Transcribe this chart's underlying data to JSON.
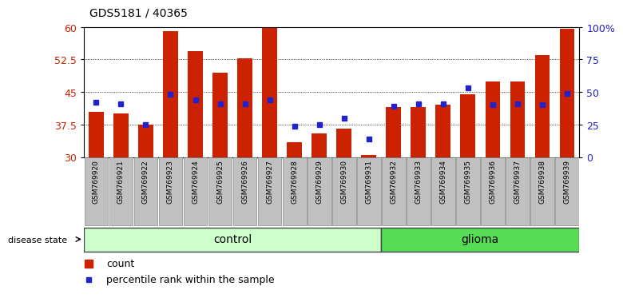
{
  "title": "GDS5181 / 40365",
  "samples": [
    "GSM769920",
    "GSM769921",
    "GSM769922",
    "GSM769923",
    "GSM769924",
    "GSM769925",
    "GSM769926",
    "GSM769927",
    "GSM769928",
    "GSM769929",
    "GSM769930",
    "GSM769931",
    "GSM769932",
    "GSM769933",
    "GSM769934",
    "GSM769935",
    "GSM769936",
    "GSM769937",
    "GSM769938",
    "GSM769939"
  ],
  "counts": [
    40.5,
    40.0,
    37.5,
    59.0,
    54.5,
    49.5,
    52.7,
    59.7,
    33.5,
    35.5,
    36.5,
    30.5,
    41.5,
    41.5,
    42.0,
    44.5,
    47.5,
    47.5,
    53.5,
    59.5
  ],
  "percentile_ranks": [
    42,
    41,
    25,
    48,
    44,
    41,
    41,
    44,
    24,
    25,
    30,
    14,
    39,
    41,
    41,
    53,
    40,
    41,
    40,
    49
  ],
  "n_control": 12,
  "n_glioma": 8,
  "ylim_left": [
    30,
    60
  ],
  "ylim_right": [
    0,
    100
  ],
  "yticks_left": [
    30,
    37.5,
    45,
    52.5,
    60
  ],
  "yticks_right": [
    0,
    25,
    50,
    75,
    100
  ],
  "bar_color": "#cc2200",
  "dot_color": "#2222cc",
  "control_color": "#ccffcc",
  "glioma_color": "#55dd55",
  "legend_count_label": "count",
  "legend_pct_label": "percentile rank within the sample",
  "label_bg_color": "#c0c0c0"
}
